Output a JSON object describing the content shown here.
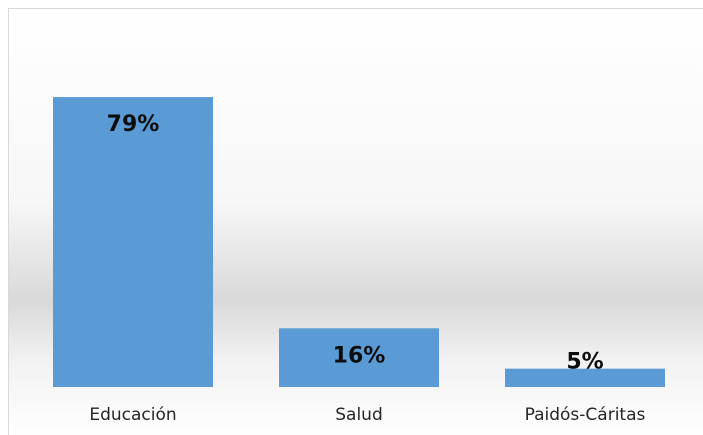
{
  "chart_data": {
    "type": "bar",
    "categories": [
      "Educación",
      "Salud",
      "Paidós-Cáritas"
    ],
    "values": [
      79,
      16,
      5
    ],
    "value_labels": [
      "79%",
      "16%",
      "5%"
    ],
    "color": "#5b9bd5",
    "ylim": [
      0,
      100
    ]
  }
}
